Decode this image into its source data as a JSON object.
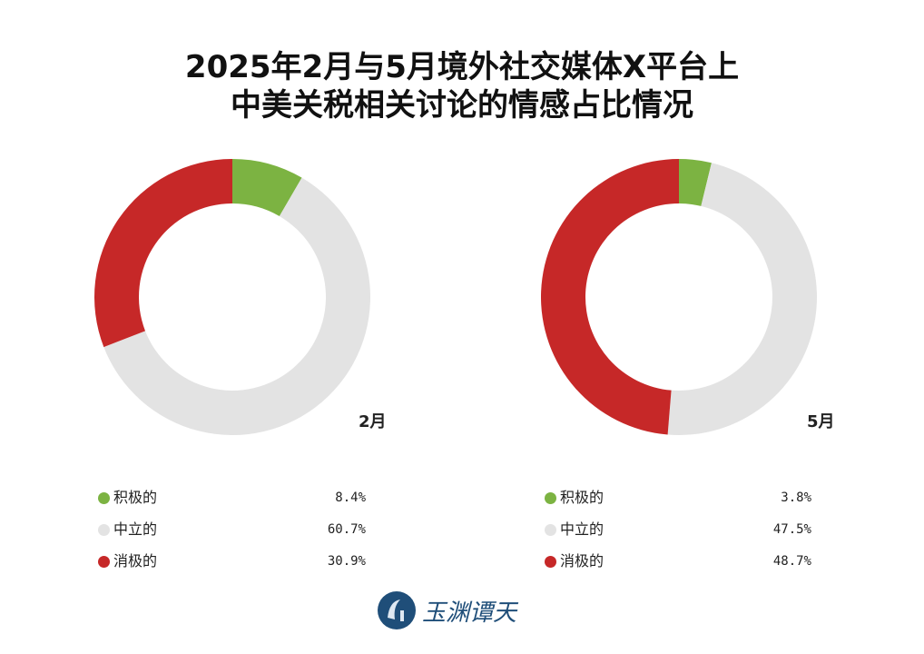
{
  "chart_data": [
    {
      "type": "pie",
      "variant": "donut",
      "title": "2025年2月与5月境外社交媒体X平台上中美关税相关讨论的情感占比情况",
      "label": "2月",
      "categories": [
        "积极的",
        "中立的",
        "消极的"
      ],
      "values": [
        8.4,
        60.7,
        30.9
      ],
      "value_labels": [
        "8.4%",
        "60.7%",
        "30.9%"
      ],
      "colors": [
        "#7cb342",
        "#e3e3e3",
        "#c62828"
      ],
      "legend": "bottom"
    },
    {
      "type": "pie",
      "variant": "donut",
      "label": "5月",
      "categories": [
        "积极的",
        "中立的",
        "消极的"
      ],
      "values": [
        3.8,
        47.5,
        48.7
      ],
      "value_labels": [
        "3.8%",
        "47.5%",
        "48.7%"
      ],
      "colors": [
        "#7cb342",
        "#e3e3e3",
        "#c62828"
      ],
      "legend": "bottom"
    }
  ],
  "title_line1": "2025年2月与5月境外社交媒体X平台上",
  "title_line2": "中美关税相关讨论的情感占比情况",
  "logo_text": "玉渊谭天"
}
